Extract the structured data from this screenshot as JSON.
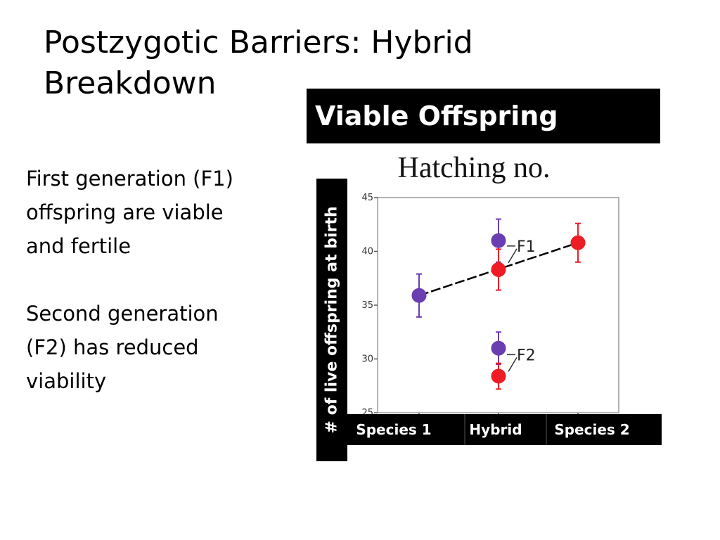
{
  "slide": {
    "title": "Postzygotic Barriers: Hybrid Breakdown",
    "paragraph1": "First generation (F1) offspring are viable and fertile",
    "paragraph2": "Second generation (F2) has reduced viability",
    "banner": "Viable Offspring"
  },
  "colors": {
    "red": "#ee1c25",
    "purple": "#6a3db0",
    "black": "#000000"
  },
  "chart_data": {
    "type": "scatter",
    "title": "Hatching no.",
    "ylabel": "# of live offspring at birth",
    "xlabel": "",
    "categories": [
      "Species 1",
      "Hybrid",
      "Species 2"
    ],
    "ylim": [
      25,
      45
    ],
    "yticks": [
      25,
      30,
      35,
      40,
      45
    ],
    "grid": false,
    "points": [
      {
        "category": "Species 1",
        "y": 35.9,
        "err": 2.0,
        "color": "purple"
      },
      {
        "category": "Hybrid",
        "y": 41.0,
        "err": 2.0,
        "color": "purple",
        "group": "F1"
      },
      {
        "category": "Hybrid",
        "y": 38.3,
        "err": 1.9,
        "color": "red",
        "group": "F1"
      },
      {
        "category": "Hybrid",
        "y": 31.0,
        "err": 1.5,
        "color": "purple",
        "group": "F2"
      },
      {
        "category": "Hybrid",
        "y": 28.4,
        "err": 1.2,
        "color": "red",
        "group": "F2"
      },
      {
        "category": "Species 2",
        "y": 40.8,
        "err": 1.8,
        "color": "red"
      }
    ],
    "trend_line": {
      "from": {
        "category": "Species 1",
        "y": 35.9
      },
      "to": {
        "category": "Species 2",
        "y": 40.8
      },
      "style": "dashed"
    },
    "annotations": [
      {
        "label": "F1",
        "category": "Hybrid",
        "y": 40.5
      },
      {
        "label": "F2",
        "category": "Hybrid",
        "y": 30.4
      }
    ]
  }
}
